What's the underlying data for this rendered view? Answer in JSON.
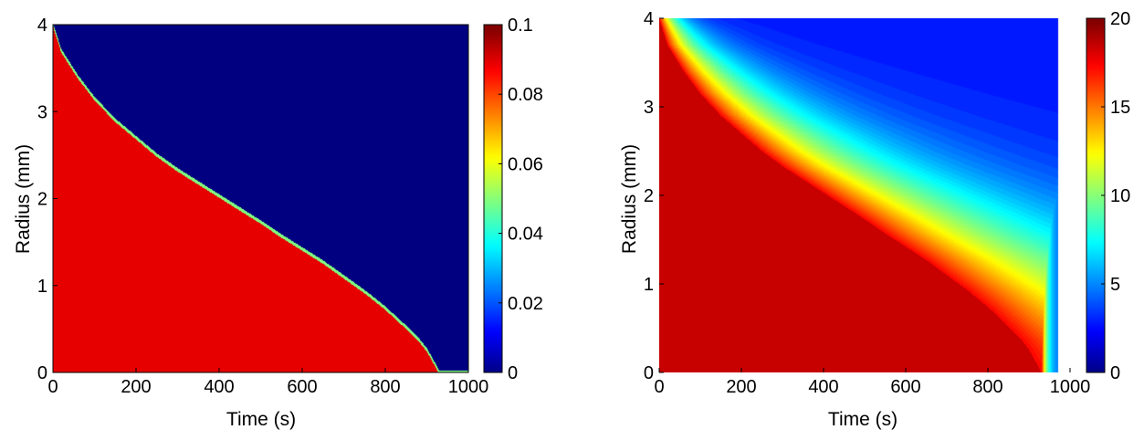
{
  "chart_data": [
    {
      "type": "heatmap",
      "xlabel": "Time (s)",
      "ylabel": "Radius (mm)",
      "xlim": [
        0,
        1000
      ],
      "ylim": [
        0,
        4
      ],
      "xticks": [
        "0",
        "200",
        "400",
        "600",
        "800",
        "1000"
      ],
      "yticks": [
        "0",
        "1",
        "2",
        "3",
        "4"
      ],
      "colorbar": {
        "min": 0,
        "max": 0.1,
        "ticks": [
          "0",
          "0.02",
          "0.04",
          "0.06",
          "0.08",
          "0.1"
        ]
      },
      "colormap": "jet",
      "data_extent_x": 1000,
      "regions": {
        "below_front_value": 0.09,
        "above_front_value": 0.0
      },
      "front_curve": {
        "x": [
          0,
          20,
          60,
          100,
          150,
          200,
          250,
          300,
          350,
          400,
          450,
          500,
          550,
          600,
          650,
          700,
          750,
          800,
          850,
          880,
          900,
          920,
          930
        ],
        "y": [
          4.0,
          3.7,
          3.4,
          3.15,
          2.9,
          2.7,
          2.5,
          2.33,
          2.18,
          2.03,
          1.88,
          1.73,
          1.57,
          1.42,
          1.27,
          1.1,
          0.93,
          0.74,
          0.52,
          0.38,
          0.26,
          0.09,
          0.0
        ]
      }
    },
    {
      "type": "heatmap",
      "xlabel": "Time (s)",
      "ylabel": "Radius (mm)",
      "xlim": [
        0,
        1000
      ],
      "ylim": [
        0,
        4
      ],
      "xticks": [
        "0",
        "200",
        "400",
        "600",
        "800",
        "1000"
      ],
      "yticks": [
        "0",
        "1",
        "2",
        "3",
        "4"
      ],
      "colorbar": {
        "min": 0,
        "max": 20,
        "ticks": [
          "0",
          "5",
          "10",
          "15",
          "20"
        ]
      },
      "colormap": "jet",
      "data_extent_x": 970,
      "regions": {
        "core_value": 18.5,
        "outer_min_value": 3.0,
        "edge_value": 4.0
      },
      "front_curve": {
        "x": [
          0,
          20,
          60,
          100,
          150,
          200,
          250,
          300,
          350,
          400,
          450,
          500,
          550,
          600,
          650,
          700,
          750,
          800,
          850,
          880,
          900,
          920,
          930
        ],
        "y": [
          4.0,
          3.7,
          3.4,
          3.15,
          2.9,
          2.7,
          2.5,
          2.33,
          2.18,
          2.03,
          1.88,
          1.73,
          1.57,
          1.42,
          1.27,
          1.1,
          0.93,
          0.74,
          0.52,
          0.38,
          0.26,
          0.09,
          0.0
        ]
      }
    }
  ]
}
